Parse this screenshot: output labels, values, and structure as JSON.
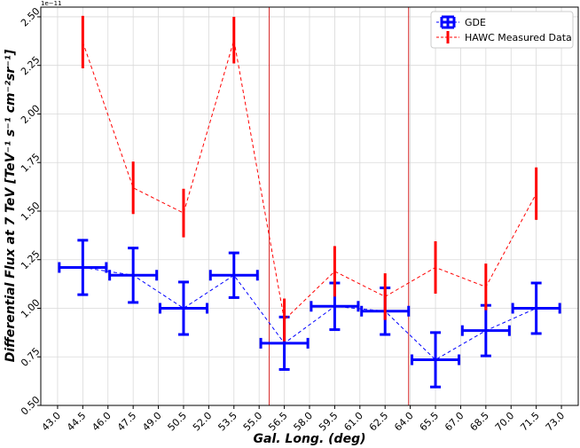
{
  "chart_data": {
    "type": "scatter",
    "title": "",
    "xlabel": "Gal. Long. (deg)",
    "ylabel": "Differential Flux at 7 TeV  [TeV⁻¹ s⁻¹ cm⁻²sr⁻¹]",
    "y_offset_label": "1e−11",
    "xlim": [
      42,
      74
    ],
    "ylim": [
      0.5,
      2.55
    ],
    "y_scale_factor": 1e-11,
    "grid": true,
    "legend_position": "top-right",
    "x_ticks": [
      "43.0",
      "44.5",
      "46.0",
      "47.5",
      "49.0",
      "50.5",
      "52.0",
      "53.5",
      "55.0",
      "56.5",
      "58.0",
      "59.5",
      "61.0",
      "62.5",
      "64.0",
      "65.5",
      "67.0",
      "68.5",
      "70.0",
      "71.5",
      "73.0"
    ],
    "y_ticks": [
      "0.50",
      "0.75",
      "1.00",
      "1.25",
      "1.50",
      "1.75",
      "2.00",
      "2.25",
      "2.50"
    ],
    "vlines": [
      55.6,
      63.9
    ],
    "vline_color": "#d62728",
    "series": [
      {
        "name": "GDE",
        "color": "#0000ff",
        "style": "dashed-errorbar-cross",
        "x": [
          44.5,
          47.5,
          50.5,
          53.5,
          56.5,
          59.5,
          62.5,
          65.5,
          68.5,
          71.5
        ],
        "y": [
          1.21,
          1.17,
          1.0,
          1.17,
          0.82,
          1.01,
          0.985,
          0.735,
          0.885,
          1.0
        ],
        "yerr": [
          0.14,
          0.14,
          0.135,
          0.115,
          0.135,
          0.12,
          0.12,
          0.14,
          0.13,
          0.13
        ],
        "xerr": [
          1.4,
          1.4,
          1.4,
          1.4,
          1.4,
          1.4,
          1.4,
          1.4,
          1.4,
          1.4
        ]
      },
      {
        "name": "HAWC Measured Data",
        "color": "#ff0000",
        "style": "dashed-errorbar-vertical",
        "x": [
          44.5,
          47.5,
          50.5,
          53.5,
          56.5,
          59.5,
          62.5,
          65.5,
          68.5,
          71.5
        ],
        "y": [
          2.37,
          1.62,
          1.49,
          2.38,
          0.94,
          1.19,
          1.06,
          1.21,
          1.11,
          1.59
        ],
        "yerr": [
          0.135,
          0.135,
          0.125,
          0.12,
          0.11,
          0.13,
          0.12,
          0.135,
          0.12,
          0.135
        ]
      }
    ]
  }
}
